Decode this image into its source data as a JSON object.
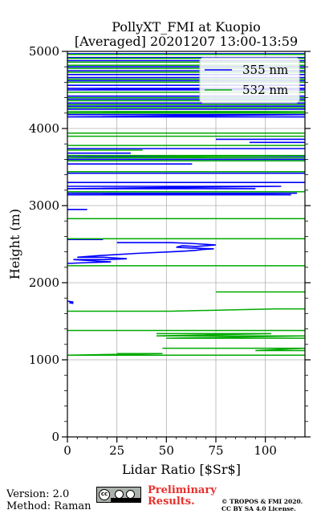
{
  "chart_data": {
    "type": "line",
    "title": "PollyXT_FMI at Kuopio",
    "subtitle": "[Averaged] 20201207 13:00-13:59",
    "xlabel": "Lidar Ratio [$Sr$]",
    "ylabel": "Height (m)",
    "xlim": [
      0,
      120
    ],
    "ylim": [
      0,
      5000
    ],
    "x_ticks": [
      "0",
      "25",
      "50",
      "75",
      "100"
    ],
    "y_ticks": [
      "0",
      "1000",
      "2000",
      "3000",
      "4000",
      "5000"
    ],
    "grid": true,
    "legend_position": "top-right",
    "series": [
      {
        "name": "355 nm",
        "color": "#0000ff",
        "points": [
          [
            0,
            4970
          ],
          [
            120,
            4970
          ],
          [
            0,
            4920
          ],
          [
            120,
            4920
          ],
          [
            0,
            4880
          ],
          [
            120,
            4880
          ],
          [
            0,
            4800
          ],
          [
            120,
            4800
          ],
          [
            0,
            4750
          ],
          [
            120,
            4750
          ],
          [
            0,
            4700
          ],
          [
            120,
            4700
          ],
          [
            0,
            4660
          ],
          [
            120,
            4660
          ],
          [
            0,
            4620
          ],
          [
            120,
            4620
          ],
          [
            0,
            4560
          ],
          [
            120,
            4560
          ],
          [
            0,
            4520
          ],
          [
            120,
            4520
          ],
          [
            0,
            4500
          ],
          [
            120,
            4500
          ],
          [
            0,
            4420
          ],
          [
            120,
            4420
          ],
          [
            0,
            4380
          ],
          [
            120,
            4380
          ],
          [
            0,
            4330
          ],
          [
            120,
            4330
          ],
          [
            0,
            4290
          ],
          [
            120,
            4290
          ],
          [
            0,
            4250
          ],
          [
            120,
            4250
          ],
          [
            0,
            4180
          ],
          [
            120,
            4180
          ],
          [
            0,
            4150
          ],
          [
            120,
            4150
          ],
          [
            75,
            3860
          ],
          [
            120,
            3860
          ],
          [
            92,
            3820
          ],
          [
            120,
            3820
          ],
          [
            0,
            3740
          ],
          [
            120,
            3740
          ],
          [
            0,
            3680
          ],
          [
            32,
            3680
          ],
          [
            0,
            3640
          ],
          [
            120,
            3640
          ],
          [
            0,
            3600
          ],
          [
            120,
            3600
          ],
          [
            0,
            3540
          ],
          [
            63,
            3540
          ],
          [
            0,
            3420
          ],
          [
            120,
            3420
          ],
          [
            0,
            3300
          ],
          [
            120,
            3300
          ],
          [
            0,
            3250
          ],
          [
            108,
            3250
          ],
          [
            0,
            3220
          ],
          [
            95,
            3220
          ],
          [
            0,
            3160
          ],
          [
            116,
            3160
          ],
          [
            0,
            3140
          ],
          [
            113,
            3140
          ],
          [
            0,
            2950
          ],
          [
            10,
            2950
          ],
          [
            0,
            2560
          ],
          [
            18,
            2560
          ],
          [
            25,
            2520
          ],
          [
            52,
            2520
          ],
          [
            62,
            2510
          ],
          [
            75,
            2490
          ],
          [
            65,
            2470
          ],
          [
            58,
            2480
          ],
          [
            55,
            2460
          ],
          [
            62,
            2450
          ],
          [
            74,
            2440
          ],
          [
            68,
            2430
          ],
          [
            65,
            2420
          ],
          [
            60,
            2410
          ],
          [
            52,
            2400
          ],
          [
            35,
            2380
          ],
          [
            15,
            2350
          ],
          [
            5,
            2330
          ],
          [
            18,
            2330
          ],
          [
            30,
            2310
          ],
          [
            20,
            2300
          ],
          [
            3,
            2300
          ],
          [
            15,
            2280
          ],
          [
            22,
            2270
          ],
          [
            10,
            2260
          ],
          [
            0,
            2250
          ],
          [
            0,
            1760
          ],
          [
            3,
            1750
          ],
          [
            1,
            1740
          ],
          [
            3,
            1730
          ]
        ]
      },
      {
        "name": "532 nm",
        "color": "#00aa00",
        "points": [
          [
            0,
            4960
          ],
          [
            120,
            4960
          ],
          [
            0,
            4910
          ],
          [
            120,
            4910
          ],
          [
            0,
            4860
          ],
          [
            120,
            4860
          ],
          [
            0,
            4820
          ],
          [
            120,
            4820
          ],
          [
            0,
            4780
          ],
          [
            120,
            4780
          ],
          [
            0,
            4730
          ],
          [
            120,
            4730
          ],
          [
            0,
            4640
          ],
          [
            120,
            4640
          ],
          [
            0,
            4600
          ],
          [
            120,
            4600
          ],
          [
            0,
            4470
          ],
          [
            120,
            4470
          ],
          [
            0,
            4400
          ],
          [
            120,
            4400
          ],
          [
            0,
            4360
          ],
          [
            120,
            4360
          ],
          [
            0,
            4310
          ],
          [
            120,
            4310
          ],
          [
            0,
            4270
          ],
          [
            120,
            4270
          ],
          [
            0,
            4220
          ],
          [
            120,
            4220
          ],
          [
            0,
            4200
          ],
          [
            120,
            4200
          ],
          [
            0,
            3940
          ],
          [
            120,
            3940
          ],
          [
            0,
            3900
          ],
          [
            120,
            3900
          ],
          [
            0,
            3780
          ],
          [
            120,
            3780
          ],
          [
            0,
            3720
          ],
          [
            38,
            3720
          ],
          [
            0,
            3650
          ],
          [
            120,
            3650
          ],
          [
            0,
            3620
          ],
          [
            120,
            3620
          ],
          [
            0,
            3580
          ],
          [
            120,
            3580
          ],
          [
            0,
            3440
          ],
          [
            120,
            3440
          ],
          [
            0,
            3180
          ],
          [
            120,
            3180
          ],
          [
            0,
            2830
          ],
          [
            120,
            2830
          ],
          [
            0,
            2570
          ],
          [
            120,
            2570
          ],
          [
            0,
            2220
          ],
          [
            120,
            2220
          ],
          [
            75,
            1880
          ],
          [
            120,
            1880
          ],
          [
            0,
            1630
          ],
          [
            52,
            1630
          ],
          [
            105,
            1660
          ],
          [
            120,
            1660
          ],
          [
            0,
            1380
          ],
          [
            120,
            1380
          ],
          [
            45,
            1340
          ],
          [
            103,
            1340
          ],
          [
            45,
            1310
          ],
          [
            120,
            1310
          ],
          [
            50,
            1280
          ],
          [
            120,
            1280
          ],
          [
            48,
            1150
          ],
          [
            120,
            1150
          ],
          [
            95,
            1120
          ],
          [
            120,
            1120
          ],
          [
            25,
            1080
          ],
          [
            48,
            1080
          ],
          [
            0,
            1060
          ],
          [
            120,
            1060
          ]
        ]
      }
    ]
  },
  "footer": {
    "version": "Version: 2.0",
    "method": "Method: Raman",
    "license_icon": "cc-by-sa-badge",
    "preliminary_line1": "Preliminary",
    "preliminary_line2": "Results.",
    "copyright_line1": "© TROPOS & FMI 2020.",
    "copyright_line2": "CC BY SA 4.0 License."
  }
}
